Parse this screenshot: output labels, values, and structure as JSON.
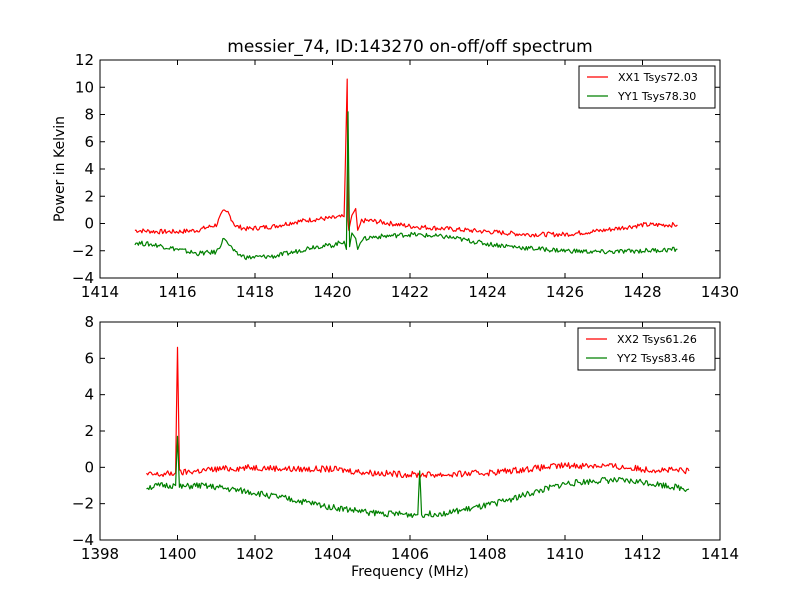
{
  "chart_data": [
    {
      "type": "line",
      "title": "messier_74, ID:143270 on-off/off spectrum",
      "xlabel": "",
      "ylabel": "Power in Kelvin",
      "xlim": [
        1414,
        1430
      ],
      "ylim": [
        -4,
        12
      ],
      "xticks": [
        "1414",
        "1416",
        "1418",
        "1420",
        "1422",
        "1424",
        "1426",
        "1428",
        "1430"
      ],
      "yticks": [
        "−4",
        "−2",
        "0",
        "2",
        "4",
        "6",
        "8",
        "10",
        "12"
      ],
      "xtick_values": [
        1414,
        1416,
        1418,
        1420,
        1422,
        1424,
        1426,
        1428,
        1430
      ],
      "ytick_values": [
        -4,
        -2,
        0,
        2,
        4,
        6,
        8,
        10,
        12
      ],
      "grid": false,
      "legend_position": "top-right",
      "series": [
        {
          "name": "XX1 Tsys72.03",
          "color": "#ff0000",
          "x": [
            1414.9,
            1415.5,
            1416.0,
            1416.5,
            1417.0,
            1417.2,
            1417.3,
            1417.5,
            1417.8,
            1418.5,
            1419.0,
            1419.5,
            1420.0,
            1420.3,
            1420.38,
            1420.4,
            1420.42,
            1420.5,
            1420.6,
            1420.65,
            1420.75,
            1421.0,
            1421.5,
            1422.0,
            1423.0,
            1424.0,
            1425.0,
            1426.0,
            1427.0,
            1428.0,
            1428.9
          ],
          "y": [
            -0.5,
            -0.6,
            -0.6,
            -0.5,
            -0.1,
            1.0,
            0.8,
            -0.2,
            -0.4,
            -0.2,
            0.1,
            0.3,
            0.4,
            0.5,
            10.6,
            0.3,
            -0.5,
            0.6,
            1.1,
            -0.5,
            0.2,
            0.2,
            0.0,
            -0.2,
            -0.4,
            -0.6,
            -0.8,
            -0.8,
            -0.5,
            -0.1,
            -0.1
          ]
        },
        {
          "name": "YY1 Tsys78.30",
          "color": "#008000",
          "x": [
            1414.9,
            1415.5,
            1416.0,
            1416.5,
            1417.0,
            1417.2,
            1417.3,
            1417.5,
            1417.8,
            1418.5,
            1419.0,
            1419.5,
            1420.0,
            1420.3,
            1420.36,
            1420.4,
            1420.44,
            1420.5,
            1420.6,
            1420.65,
            1420.75,
            1421.0,
            1421.5,
            1422.0,
            1423.0,
            1424.0,
            1425.0,
            1426.0,
            1427.0,
            1428.0,
            1428.9
          ],
          "y": [
            -1.4,
            -1.6,
            -1.9,
            -2.2,
            -2.1,
            -1.1,
            -1.4,
            -2.2,
            -2.5,
            -2.4,
            -2.1,
            -1.7,
            -1.6,
            -1.3,
            -1.9,
            8.2,
            -1.7,
            -0.7,
            -1.1,
            -1.9,
            -1.2,
            -1.0,
            -0.9,
            -0.8,
            -1.0,
            -1.5,
            -1.8,
            -2.0,
            -2.1,
            -2.0,
            -1.9
          ]
        }
      ]
    },
    {
      "type": "line",
      "title": "",
      "xlabel": "Frequency (MHz)",
      "ylabel": "",
      "xlim": [
        1398,
        1414
      ],
      "ylim": [
        -4,
        8
      ],
      "xticks": [
        "1398",
        "1400",
        "1402",
        "1404",
        "1406",
        "1408",
        "1410",
        "1412",
        "1414"
      ],
      "yticks": [
        "−4",
        "−2",
        "0",
        "2",
        "4",
        "6",
        "8"
      ],
      "xtick_values": [
        1398,
        1400,
        1402,
        1404,
        1406,
        1408,
        1410,
        1412,
        1414
      ],
      "ytick_values": [
        -4,
        -2,
        0,
        2,
        4,
        6,
        8
      ],
      "grid": false,
      "legend_position": "top-right",
      "series": [
        {
          "name": "XX2 Tsys61.26",
          "color": "#ff0000",
          "x": [
            1399.2,
            1399.6,
            1399.95,
            1400.0,
            1400.05,
            1400.5,
            1401.0,
            1402.0,
            1403.0,
            1404.0,
            1405.0,
            1406.0,
            1406.3,
            1407.0,
            1408.0,
            1409.0,
            1410.0,
            1411.0,
            1412.0,
            1413.2
          ],
          "y": [
            -0.4,
            -0.4,
            -0.3,
            6.6,
            -0.3,
            -0.2,
            -0.1,
            0.0,
            -0.1,
            -0.1,
            -0.3,
            -0.4,
            -0.4,
            -0.4,
            -0.3,
            -0.1,
            0.1,
            0.1,
            -0.1,
            -0.2
          ]
        },
        {
          "name": "YY2 Tsys83.46",
          "color": "#008000",
          "x": [
            1399.2,
            1399.6,
            1399.95,
            1400.0,
            1400.05,
            1400.5,
            1401.0,
            1402.0,
            1403.0,
            1404.0,
            1405.0,
            1406.0,
            1406.2,
            1406.25,
            1406.3,
            1407.0,
            1408.0,
            1409.0,
            1410.0,
            1411.0,
            1412.0,
            1413.2
          ],
          "y": [
            -1.1,
            -1.0,
            -1.0,
            1.7,
            -1.1,
            -1.0,
            -1.1,
            -1.4,
            -1.8,
            -2.2,
            -2.5,
            -2.6,
            -2.6,
            -0.2,
            -2.6,
            -2.5,
            -2.1,
            -1.5,
            -0.9,
            -0.7,
            -0.8,
            -1.2
          ]
        }
      ]
    }
  ]
}
